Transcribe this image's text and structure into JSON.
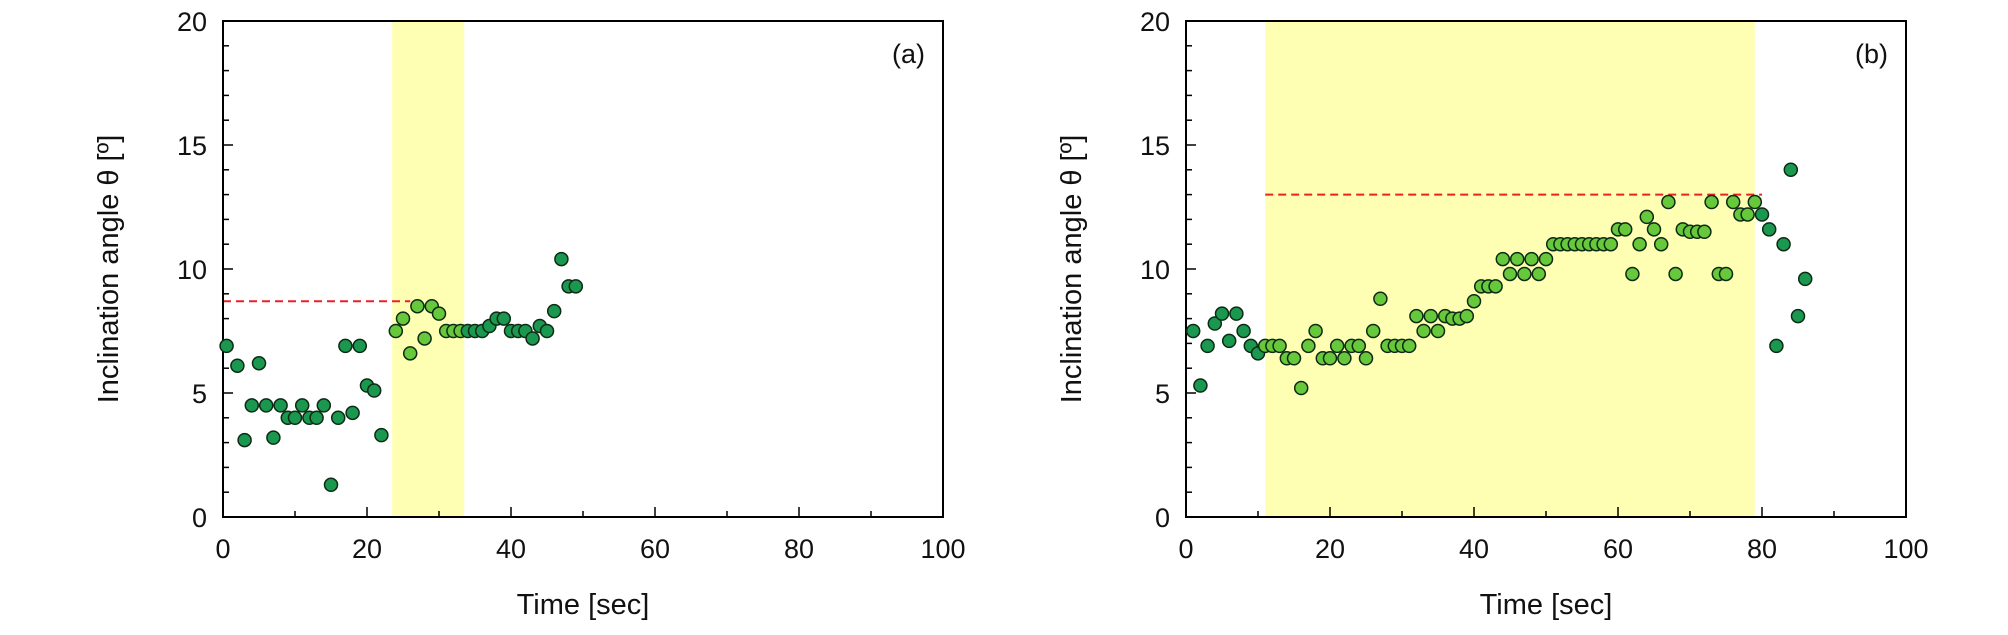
{
  "chart_data": [
    {
      "type": "scatter",
      "panel_label": "(a)",
      "xlabel": "Time [sec]",
      "ylabel": "Inclination angle θ [º]",
      "xlim": [
        0,
        100
      ],
      "ylim": [
        0,
        20
      ],
      "xticks": [
        0,
        20,
        40,
        60,
        80,
        100
      ],
      "yticks": [
        0,
        5,
        10,
        15,
        20
      ],
      "grid": false,
      "highlight_band": {
        "x_start": 23.5,
        "x_end": 33.5,
        "color": "#ffff99"
      },
      "reference_line": {
        "y": 8.7,
        "x_start": 0,
        "x_end": 26,
        "color": "#e8212a",
        "style": "dashed"
      },
      "colors": {
        "outside": "#1a9850",
        "inside": "#66c83a",
        "edge": "#0d2a14"
      },
      "series": [
        {
          "points": [
            [
              0.5,
              6.9
            ],
            [
              2,
              6.1
            ],
            [
              3,
              3.1
            ],
            [
              4,
              4.5
            ],
            [
              5,
              6.2
            ],
            [
              6,
              4.5
            ],
            [
              7,
              3.2
            ],
            [
              8,
              4.5
            ],
            [
              9,
              4.0
            ],
            [
              10,
              4.0
            ],
            [
              11,
              4.5
            ],
            [
              12,
              4.0
            ],
            [
              13,
              4.0
            ],
            [
              14,
              4.5
            ],
            [
              15,
              1.3
            ],
            [
              16,
              4.0
            ],
            [
              17,
              6.9
            ],
            [
              18,
              4.2
            ],
            [
              19,
              6.9
            ],
            [
              20,
              5.3
            ],
            [
              21,
              5.1
            ],
            [
              22,
              3.3
            ],
            [
              24,
              7.5
            ],
            [
              25,
              8.0
            ],
            [
              26,
              6.6
            ],
            [
              27,
              8.5
            ],
            [
              28,
              7.2
            ],
            [
              29,
              8.5
            ],
            [
              30,
              8.2
            ],
            [
              31,
              7.5
            ],
            [
              32,
              7.5
            ],
            [
              33,
              7.5
            ],
            [
              34,
              7.5
            ],
            [
              35,
              7.5
            ],
            [
              36,
              7.5
            ],
            [
              37,
              7.7
            ],
            [
              38,
              8.0
            ],
            [
              39,
              8.0
            ],
            [
              40,
              7.5
            ],
            [
              41,
              7.5
            ],
            [
              42,
              7.5
            ],
            [
              43,
              7.2
            ],
            [
              44,
              7.7
            ],
            [
              45,
              7.5
            ],
            [
              46,
              8.3
            ],
            [
              47,
              10.4
            ],
            [
              48,
              9.3
            ],
            [
              49,
              9.3
            ]
          ]
        }
      ]
    },
    {
      "type": "scatter",
      "panel_label": "(b)",
      "xlabel": "Time [sec]",
      "ylabel": "Inclination angle θ [º]",
      "xlim": [
        0,
        100
      ],
      "ylim": [
        0,
        20
      ],
      "xticks": [
        0,
        20,
        40,
        60,
        80,
        100
      ],
      "yticks": [
        0,
        5,
        10,
        15,
        20
      ],
      "grid": false,
      "highlight_band": {
        "x_start": 11,
        "x_end": 79,
        "color": "#ffff99"
      },
      "reference_line": {
        "y": 13.0,
        "x_start": 11,
        "x_end": 80,
        "color": "#e8212a",
        "style": "dashed"
      },
      "colors": {
        "outside": "#1a9850",
        "inside": "#66c83a",
        "edge": "#0d2a14"
      },
      "series": [
        {
          "points": [
            [
              1,
              7.5
            ],
            [
              2,
              5.3
            ],
            [
              3,
              6.9
            ],
            [
              4,
              7.8
            ],
            [
              5,
              8.2
            ],
            [
              6,
              7.1
            ],
            [
              7,
              8.2
            ],
            [
              8,
              7.5
            ],
            [
              9,
              6.9
            ],
            [
              10,
              6.6
            ],
            [
              11,
              6.9
            ],
            [
              12,
              6.9
            ],
            [
              13,
              6.9
            ],
            [
              14,
              6.4
            ],
            [
              15,
              6.4
            ],
            [
              16,
              5.2
            ],
            [
              17,
              6.9
            ],
            [
              18,
              7.5
            ],
            [
              19,
              6.4
            ],
            [
              20,
              6.4
            ],
            [
              21,
              6.9
            ],
            [
              22,
              6.4
            ],
            [
              23,
              6.9
            ],
            [
              24,
              6.9
            ],
            [
              25,
              6.4
            ],
            [
              26,
              7.5
            ],
            [
              27,
              8.8
            ],
            [
              28,
              6.9
            ],
            [
              29,
              6.9
            ],
            [
              30,
              6.9
            ],
            [
              31,
              6.9
            ],
            [
              32,
              8.1
            ],
            [
              33,
              7.5
            ],
            [
              34,
              8.1
            ],
            [
              35,
              7.5
            ],
            [
              36,
              8.1
            ],
            [
              37,
              8.0
            ],
            [
              38,
              8.0
            ],
            [
              39,
              8.1
            ],
            [
              40,
              8.7
            ],
            [
              41,
              9.3
            ],
            [
              42,
              9.3
            ],
            [
              43,
              9.3
            ],
            [
              44,
              10.4
            ],
            [
              45,
              9.8
            ],
            [
              46,
              10.4
            ],
            [
              47,
              9.8
            ],
            [
              48,
              10.4
            ],
            [
              49,
              9.8
            ],
            [
              50,
              10.4
            ],
            [
              51,
              11.0
            ],
            [
              52,
              11.0
            ],
            [
              53,
              11.0
            ],
            [
              54,
              11.0
            ],
            [
              55,
              11.0
            ],
            [
              56,
              11.0
            ],
            [
              57,
              11.0
            ],
            [
              58,
              11.0
            ],
            [
              59,
              11.0
            ],
            [
              60,
              11.6
            ],
            [
              61,
              11.6
            ],
            [
              62,
              9.8
            ],
            [
              63,
              11.0
            ],
            [
              64,
              12.1
            ],
            [
              65,
              11.6
            ],
            [
              66,
              11.0
            ],
            [
              67,
              12.7
            ],
            [
              68,
              9.8
            ],
            [
              69,
              11.6
            ],
            [
              70,
              11.5
            ],
            [
              71,
              11.5
            ],
            [
              72,
              11.5
            ],
            [
              73,
              12.7
            ],
            [
              74,
              9.8
            ],
            [
              75,
              9.8
            ],
            [
              76,
              12.7
            ],
            [
              77,
              12.2
            ],
            [
              78,
              12.2
            ],
            [
              79,
              12.7
            ],
            [
              80,
              12.2
            ],
            [
              81,
              11.6
            ],
            [
              82,
              6.9
            ],
            [
              83,
              11.0
            ],
            [
              84,
              14.0
            ],
            [
              85,
              8.1
            ],
            [
              86,
              9.6
            ]
          ]
        }
      ]
    }
  ]
}
